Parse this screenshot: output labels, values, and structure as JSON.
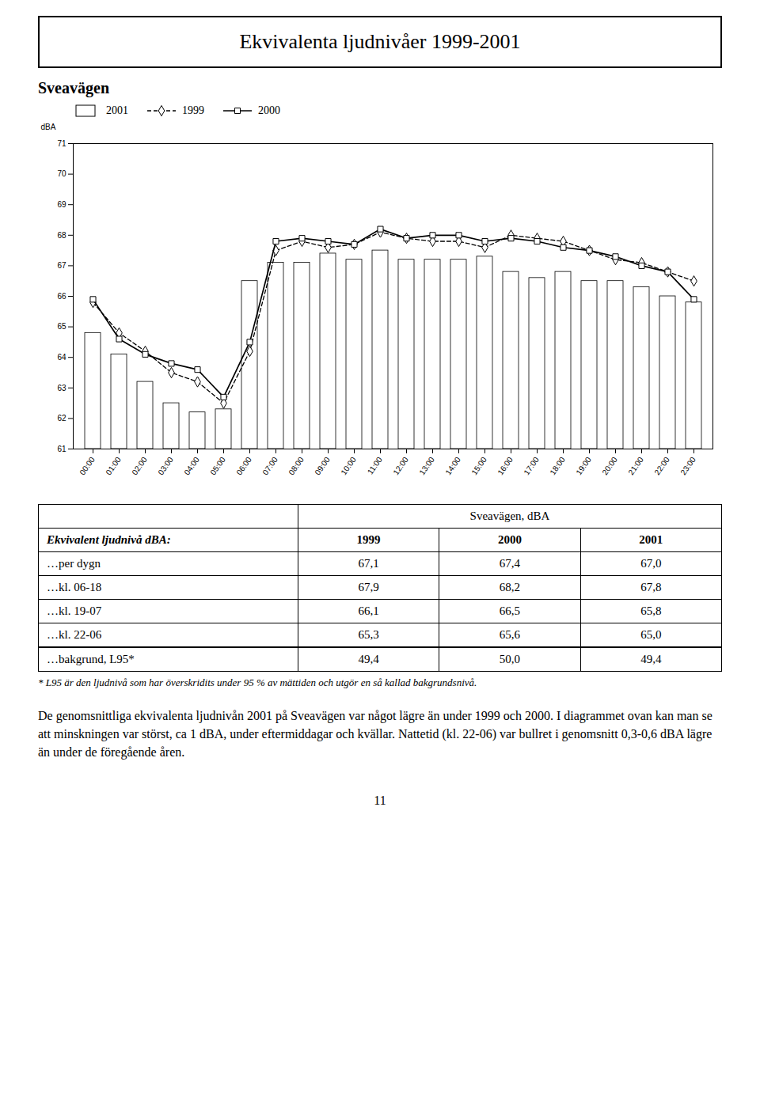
{
  "chart_data": {
    "type": "bar",
    "title": "Ekvivalenta ljudnivåer 1999-2001",
    "subtitle": "Sveavägen",
    "ylabel": "dBA",
    "categories": [
      "00:00",
      "01:00",
      "02:00",
      "03:00",
      "04:00",
      "05:00",
      "06:00",
      "07:00",
      "08:00",
      "09:00",
      "10:00",
      "11:00",
      "12:00",
      "13:00",
      "14:00",
      "15:00",
      "16:00",
      "17:00",
      "18:00",
      "19:00",
      "20:00",
      "21:00",
      "22:00",
      "23:00"
    ],
    "series": [
      {
        "name": "2001",
        "type": "bar",
        "color": "#ffffff",
        "values": [
          64.8,
          64.1,
          63.2,
          62.5,
          62.2,
          62.3,
          66.5,
          67.1,
          67.1,
          67.4,
          67.2,
          67.5,
          67.2,
          67.2,
          67.2,
          67.3,
          66.8,
          66.6,
          66.8,
          66.5,
          66.5,
          66.3,
          66.0,
          65.8
        ]
      },
      {
        "name": "1999",
        "type": "line",
        "color": "#000000",
        "line_style": "dashed",
        "marker": "diamond",
        "values": [
          65.8,
          64.8,
          64.2,
          63.5,
          63.2,
          62.5,
          64.2,
          67.5,
          67.8,
          67.6,
          67.7,
          68.1,
          67.9,
          67.8,
          67.8,
          67.6,
          68.0,
          67.9,
          67.8,
          67.5,
          67.2,
          67.1,
          66.8,
          66.5
        ]
      },
      {
        "name": "2000",
        "type": "line",
        "color": "#000000",
        "line_style": "solid",
        "marker": "square",
        "values": [
          65.9,
          64.6,
          64.1,
          63.8,
          63.6,
          62.7,
          64.5,
          67.8,
          67.9,
          67.8,
          67.7,
          68.2,
          67.9,
          68.0,
          68.0,
          67.8,
          67.9,
          67.8,
          67.6,
          67.5,
          67.3,
          67.0,
          66.8,
          65.9
        ]
      }
    ],
    "ylim": [
      61,
      71
    ],
    "yticks": [
      61,
      62,
      63,
      64,
      65,
      66,
      67,
      68,
      69,
      70,
      71
    ],
    "grid": false,
    "legend": "upper left"
  },
  "table": {
    "column_header": "Sveavägen, dBA",
    "header_label": "Ekvivalent ljudnivå dBA:",
    "years": [
      "1999",
      "2000",
      "2001"
    ],
    "rows": [
      [
        "…per dygn",
        "67,1",
        "67,4",
        "67,0"
      ],
      [
        "…kl. 06-18",
        "67,9",
        "68,2",
        "67,8"
      ],
      [
        "…kl. 19-07",
        "66,1",
        "66,5",
        "65,8"
      ],
      [
        "…kl. 22-06",
        "65,3",
        "65,6",
        "65,0"
      ],
      [
        "…bakgrund, L95*",
        "49,4",
        "50,0",
        "49,4"
      ]
    ]
  },
  "footnote": "* L95 är den ljudnivå som har överskridits under 95 % av mättiden och utgör en så kallad bakgrundsnivå.",
  "body_text": "De genomsnittliga ekvivalenta ljudnivån 2001 på Sveavägen var något lägre än under 1999 och 2000. I diagrammet ovan kan man se att minskningen var störst, ca 1 dBA, under eftermiddagar och kvällar. Nattetid (kl. 22-06) var bullret i genomsnitt 0,3-0,6 dBA lägre än under de föregående åren.",
  "page_number": "11"
}
